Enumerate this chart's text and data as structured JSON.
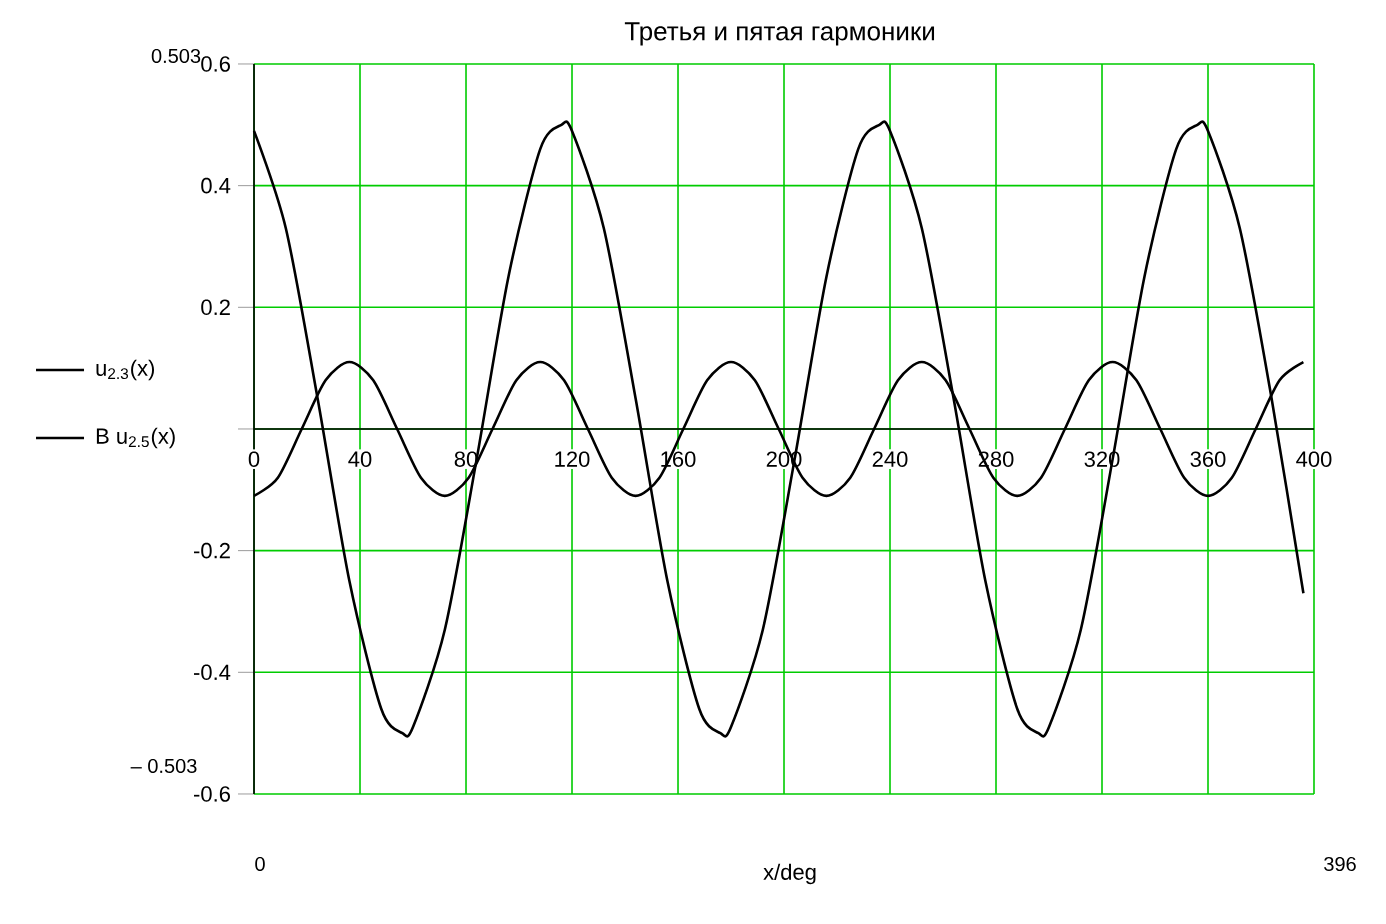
{
  "chart_data": {
    "type": "line",
    "title": "Третья и пятая гармоники",
    "xlabel": "x/deg",
    "xlim": [
      0,
      400
    ],
    "xticks": [
      0,
      40,
      80,
      120,
      160,
      200,
      240,
      280,
      320,
      360,
      400
    ],
    "ylim": [
      -0.6,
      0.6
    ],
    "yticks": [
      -0.6,
      -0.4,
      -0.2,
      {
        "value": 0,
        "label": null
      },
      0.2,
      0.4,
      0.6
    ],
    "grid": true,
    "legend": "left",
    "marker": "none",
    "line_style": "solid",
    "annotations": [
      "0.503",
      "– 0.503",
      "0",
      "396"
    ],
    "series": [
      {
        "name": "u$_{2.3}$(x)",
        "color": "#000000",
        "x": [
          0,
          12,
          24,
          36,
          48,
          56,
          60,
          72,
          84,
          96,
          108,
          116,
          120,
          132,
          144,
          156,
          168,
          176,
          180,
          192,
          204,
          216,
          228,
          236,
          240,
          252,
          264,
          276,
          288,
          296,
          300,
          312,
          324,
          336,
          348,
          356,
          360,
          372,
          384,
          396
        ],
        "values": [
          0.49,
          0.33,
          0.05,
          -0.25,
          -0.46,
          -0.5,
          -0.49,
          -0.33,
          -0.05,
          0.25,
          0.46,
          0.5,
          0.49,
          0.33,
          0.05,
          -0.25,
          -0.46,
          -0.5,
          -0.49,
          -0.33,
          -0.05,
          0.25,
          0.46,
          0.5,
          0.49,
          0.33,
          0.05,
          -0.25,
          -0.46,
          -0.5,
          -0.49,
          -0.33,
          -0.05,
          0.25,
          0.46,
          0.5,
          0.49,
          0.33,
          0.05,
          -0.27
        ]
      },
      {
        "name": "B u$_{2.5}$(x)",
        "color": "#000000",
        "x": [
          0,
          9,
          18,
          27,
          36,
          45,
          54,
          63,
          72,
          81,
          90,
          99,
          108,
          117,
          126,
          135,
          144,
          153,
          162,
          171,
          180,
          189,
          198,
          207,
          216,
          225,
          234,
          243,
          252,
          261,
          270,
          279,
          288,
          297,
          306,
          315,
          324,
          333,
          342,
          351,
          360,
          369,
          378,
          387,
          396
        ],
        "values": [
          -0.11,
          -0.08,
          0,
          0.08,
          0.11,
          0.08,
          0,
          -0.08,
          -0.11,
          -0.08,
          0,
          0.08,
          0.11,
          0.08,
          0,
          -0.08,
          -0.11,
          -0.08,
          0,
          0.08,
          0.11,
          0.08,
          0,
          -0.08,
          -0.11,
          -0.08,
          0,
          0.08,
          0.11,
          0.08,
          0,
          -0.08,
          -0.11,
          -0.08,
          0,
          0.08,
          0.11,
          0.08,
          0,
          -0.08,
          -0.11,
          -0.08,
          0,
          0.08,
          0.11
        ]
      }
    ]
  }
}
